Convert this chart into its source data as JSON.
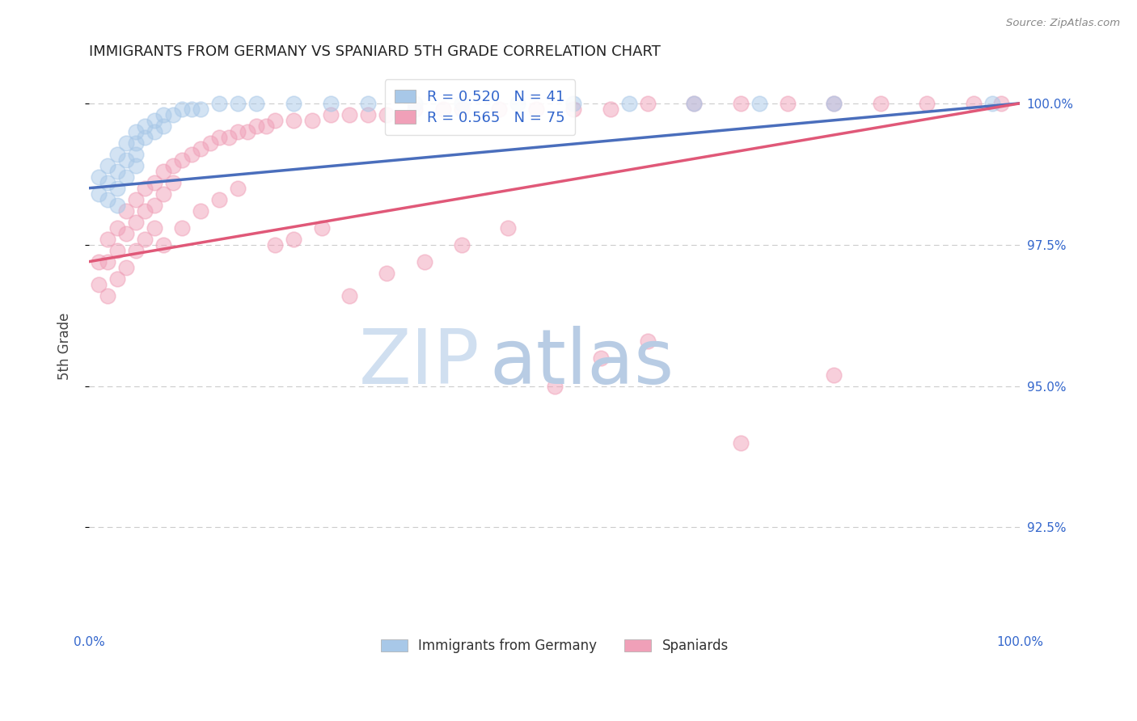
{
  "title": "IMMIGRANTS FROM GERMANY VS SPANIARD 5TH GRADE CORRELATION CHART",
  "source_text": "Source: ZipAtlas.com",
  "ylabel": "5th Grade",
  "ytick_labels": [
    "92.5%",
    "95.0%",
    "97.5%",
    "100.0%"
  ],
  "ytick_values": [
    0.925,
    0.95,
    0.975,
    1.0
  ],
  "xlim": [
    0.0,
    1.0
  ],
  "ylim": [
    0.908,
    1.006
  ],
  "legend1_label": "R = 0.520   N = 41",
  "legend2_label": "R = 0.565   N = 75",
  "legend_label1": "Immigrants from Germany",
  "legend_label2": "Spaniards",
  "blue_color": "#a8c8e8",
  "pink_color": "#f0a0b8",
  "blue_line_color": "#4a6ebc",
  "pink_line_color": "#e05878",
  "watermark_zip": "ZIP",
  "watermark_atlas": "atlas",
  "watermark_zip_color": "#d0dff0",
  "watermark_atlas_color": "#b8cce4",
  "background_color": "#ffffff",
  "germany_x": [
    0.01,
    0.01,
    0.02,
    0.02,
    0.02,
    0.03,
    0.03,
    0.03,
    0.03,
    0.04,
    0.04,
    0.04,
    0.05,
    0.05,
    0.05,
    0.05,
    0.06,
    0.06,
    0.07,
    0.07,
    0.08,
    0.08,
    0.09,
    0.1,
    0.11,
    0.12,
    0.14,
    0.16,
    0.18,
    0.22,
    0.26,
    0.3,
    0.35,
    0.4,
    0.46,
    0.52,
    0.58,
    0.65,
    0.72,
    0.8,
    0.97
  ],
  "germany_y": [
    0.987,
    0.984,
    0.989,
    0.986,
    0.983,
    0.991,
    0.988,
    0.985,
    0.982,
    0.993,
    0.99,
    0.987,
    0.995,
    0.993,
    0.991,
    0.989,
    0.996,
    0.994,
    0.997,
    0.995,
    0.998,
    0.996,
    0.998,
    0.999,
    0.999,
    0.999,
    1.0,
    1.0,
    1.0,
    1.0,
    1.0,
    1.0,
    1.0,
    1.0,
    1.0,
    1.0,
    1.0,
    1.0,
    1.0,
    1.0,
    1.0
  ],
  "spain_x": [
    0.01,
    0.01,
    0.02,
    0.02,
    0.02,
    0.03,
    0.03,
    0.03,
    0.04,
    0.04,
    0.04,
    0.05,
    0.05,
    0.05,
    0.06,
    0.06,
    0.06,
    0.07,
    0.07,
    0.07,
    0.08,
    0.08,
    0.09,
    0.09,
    0.1,
    0.11,
    0.12,
    0.13,
    0.14,
    0.15,
    0.16,
    0.17,
    0.18,
    0.19,
    0.2,
    0.22,
    0.24,
    0.26,
    0.28,
    0.3,
    0.32,
    0.35,
    0.38,
    0.4,
    0.44,
    0.48,
    0.52,
    0.56,
    0.6,
    0.65,
    0.7,
    0.75,
    0.8,
    0.85,
    0.9,
    0.95,
    0.98,
    0.08,
    0.1,
    0.12,
    0.14,
    0.16,
    0.2,
    0.22,
    0.25,
    0.28,
    0.32,
    0.36,
    0.4,
    0.45,
    0.5,
    0.55,
    0.6,
    0.7,
    0.8
  ],
  "spain_y": [
    0.972,
    0.968,
    0.976,
    0.972,
    0.966,
    0.978,
    0.974,
    0.969,
    0.981,
    0.977,
    0.971,
    0.983,
    0.979,
    0.974,
    0.985,
    0.981,
    0.976,
    0.986,
    0.982,
    0.978,
    0.988,
    0.984,
    0.989,
    0.986,
    0.99,
    0.991,
    0.992,
    0.993,
    0.994,
    0.994,
    0.995,
    0.995,
    0.996,
    0.996,
    0.997,
    0.997,
    0.997,
    0.998,
    0.998,
    0.998,
    0.998,
    0.999,
    0.999,
    0.999,
    0.999,
    0.999,
    0.999,
    0.999,
    1.0,
    1.0,
    1.0,
    1.0,
    1.0,
    1.0,
    1.0,
    1.0,
    1.0,
    0.975,
    0.978,
    0.981,
    0.983,
    0.985,
    0.975,
    0.976,
    0.978,
    0.966,
    0.97,
    0.972,
    0.975,
    0.978,
    0.95,
    0.955,
    0.958,
    0.94,
    0.952
  ]
}
